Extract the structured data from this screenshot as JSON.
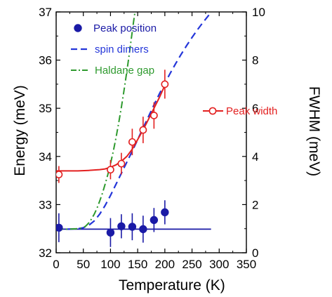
{
  "chart_data": {
    "type": "line",
    "title": "",
    "xlabel": "Temperature (K)",
    "ylabel_left": "Energy (meV)",
    "ylabel_right": "FWHM (meV)",
    "xlim": [
      0,
      350
    ],
    "ylim_left": [
      32,
      37
    ],
    "ylim_right": [
      0,
      10
    ],
    "x_ticks": [
      0,
      50,
      100,
      150,
      200,
      250,
      300,
      350
    ],
    "y_left_ticks": [
      32,
      33,
      34,
      35,
      36,
      37
    ],
    "y_right_ticks": [
      0,
      2,
      4,
      6,
      8,
      10
    ],
    "colors": {
      "peak_position": "#1a1aa6",
      "spin_dimers": "#2436d9",
      "haldane_gap": "#2e9a2e",
      "peak_width": "#e32020",
      "axis": "#000000"
    },
    "legend": {
      "peak_position": "Peak position",
      "spin_dimers": "spin dimers",
      "haldane_gap": "Haldane gap",
      "peak_width": "Peak width"
    },
    "series": [
      {
        "name": "Peak position",
        "axis": "left",
        "style": "filled-circle-errorbar",
        "x": [
          5,
          100,
          120,
          140,
          160,
          180,
          200
        ],
        "y": [
          32.52,
          32.42,
          32.55,
          32.54,
          32.49,
          32.68,
          32.84
        ],
        "yerr": [
          0.3,
          0.3,
          0.25,
          0.28,
          0.28,
          0.25,
          0.25
        ]
      },
      {
        "name": "Peak position fit",
        "axis": "left",
        "style": "solid-line",
        "x": [
          0,
          285
        ],
        "y": [
          32.49,
          32.49
        ]
      },
      {
        "name": "spin dimers",
        "axis": "left",
        "style": "dashed-line",
        "x": [
          0,
          20,
          40,
          50,
          60,
          70,
          80,
          90,
          100,
          110,
          120,
          130,
          140,
          150,
          160,
          170,
          180,
          190,
          200,
          210,
          220,
          230,
          240,
          250,
          260,
          270,
          280,
          285
        ],
        "y": [
          32.49,
          32.49,
          32.5,
          32.52,
          32.57,
          32.66,
          32.8,
          32.98,
          33.19,
          33.42,
          33.65,
          33.88,
          34.11,
          34.35,
          34.59,
          34.83,
          35.07,
          35.3,
          35.52,
          35.73,
          35.93,
          36.12,
          36.3,
          36.47,
          36.63,
          36.78,
          36.92,
          37.0
        ]
      },
      {
        "name": "Haldane gap",
        "axis": "left",
        "style": "dashdot-line",
        "x": [
          0,
          20,
          40,
          50,
          55,
          60,
          65,
          70,
          75,
          80,
          85,
          90,
          95,
          100,
          105,
          110,
          115,
          120,
          125,
          130,
          134,
          138,
          142,
          145
        ],
        "y": [
          32.49,
          32.49,
          32.5,
          32.52,
          32.56,
          32.62,
          32.7,
          32.8,
          32.92,
          33.07,
          33.23,
          33.42,
          33.62,
          33.85,
          34.1,
          34.38,
          34.69,
          35.02,
          35.38,
          35.76,
          36.08,
          36.42,
          36.76,
          37.0
        ]
      },
      {
        "name": "Peak width",
        "axis": "right",
        "style": "open-circle-errorbar",
        "x": [
          5,
          100,
          120,
          140,
          160,
          180,
          200
        ],
        "y": [
          3.25,
          3.45,
          3.7,
          4.6,
          5.1,
          5.7,
          7.0
        ],
        "yerr": [
          0.35,
          0.4,
          0.45,
          0.55,
          0.55,
          0.55,
          0.6
        ]
      },
      {
        "name": "Peak width fit",
        "axis": "right",
        "style": "solid-line",
        "x": [
          0,
          40,
          60,
          80,
          90,
          100,
          110,
          120,
          130,
          140,
          150,
          160,
          170,
          180,
          190,
          200
        ],
        "y": [
          3.4,
          3.4,
          3.42,
          3.45,
          3.48,
          3.55,
          3.65,
          3.8,
          4.0,
          4.3,
          4.7,
          5.1,
          5.55,
          6.0,
          6.45,
          6.95
        ]
      }
    ]
  }
}
